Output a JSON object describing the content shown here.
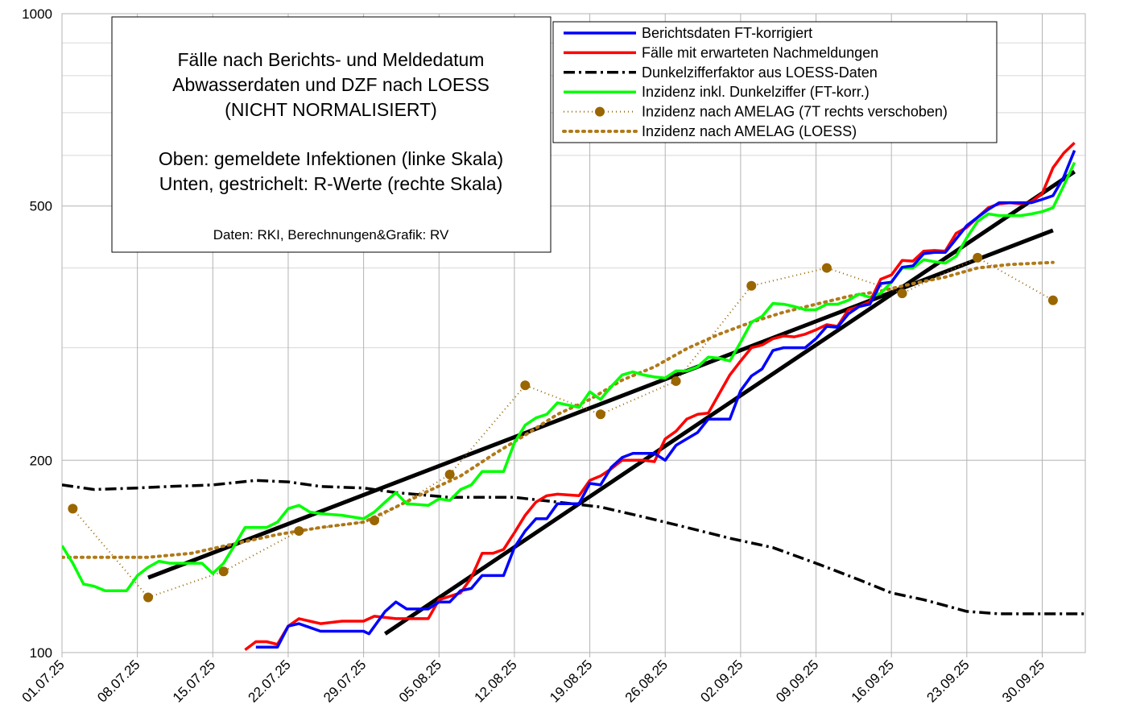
{
  "chart_data": {
    "type": "line",
    "log_y": true,
    "grid": true,
    "ylim": [
      100,
      1000
    ],
    "yticks": [
      100,
      200,
      500,
      1000
    ],
    "ygrid_minor": [
      300,
      400,
      600,
      700,
      800,
      900
    ],
    "xlim": [
      0,
      95
    ],
    "xticks": [
      {
        "value": 0,
        "label": "01.07.25"
      },
      {
        "value": 7,
        "label": "08.07.25"
      },
      {
        "value": 14,
        "label": "15.07.25"
      },
      {
        "value": 21,
        "label": "22.07.25"
      },
      {
        "value": 28,
        "label": "29.07.25"
      },
      {
        "value": 35,
        "label": "05.08.25"
      },
      {
        "value": 42,
        "label": "12.08.25"
      },
      {
        "value": 49,
        "label": "19.08.25"
      },
      {
        "value": 56,
        "label": "26.08.25"
      },
      {
        "value": 63,
        "label": "02.09.25"
      },
      {
        "value": 70,
        "label": "09.09.25"
      },
      {
        "value": 77,
        "label": "16.09.25"
      },
      {
        "value": 84,
        "label": "23.09.25"
      },
      {
        "value": 91,
        "label": "30.09.25"
      }
    ],
    "annotation": [
      "Fälle nach Berichts- und Meldedatum",
      "Abwasserdaten und DZF nach LOESS",
      "(NICHT NORMALISIERT)",
      "Oben: gemeldete Infektionen (linke Skala)",
      "Unten, gestrichelt: R-Werte (rechte Skala)",
      "Daten: RKI, Berechnungen&Grafik: RV"
    ],
    "series": [
      {
        "name": "Berichtsdaten FT-korrigiert",
        "color": "#0000ff",
        "style": "solid",
        "x": [
          18,
          20,
          21,
          22,
          24,
          28,
          28.5,
          30,
          31,
          32,
          34,
          35,
          36,
          37,
          38,
          39,
          41,
          42,
          43,
          44,
          45,
          46,
          48,
          49,
          50,
          51,
          52,
          53,
          55,
          56,
          57,
          58,
          59,
          60,
          62,
          63,
          64,
          65,
          66,
          67,
          69,
          70,
          71,
          72,
          73,
          74,
          75,
          76,
          77,
          78,
          79,
          80,
          81,
          82,
          83,
          84,
          85,
          86,
          87,
          89,
          90,
          91,
          92,
          93,
          94
        ],
        "values": [
          102,
          102,
          110,
          111,
          108,
          108,
          107,
          116,
          120,
          117,
          117,
          120,
          120,
          125,
          126,
          132,
          132,
          146,
          155,
          162,
          162,
          171,
          171,
          184,
          183,
          195,
          202,
          205,
          205,
          200,
          211,
          216,
          221,
          232,
          232,
          257,
          271,
          278,
          297,
          300,
          300,
          310,
          324,
          323,
          339,
          348,
          351,
          378,
          380,
          401,
          403,
          421,
          423,
          423,
          444,
          466,
          480,
          494,
          506,
          506,
          506,
          512,
          519,
          555,
          611
        ]
      },
      {
        "name": "Fälle mit erwarteten Nachmeldungen",
        "color": "#ff0000",
        "style": "solid",
        "x": [
          17,
          18,
          19,
          20,
          21,
          22,
          23,
          24,
          26,
          28,
          29,
          31,
          32,
          34,
          35,
          37,
          38,
          39,
          40,
          41,
          42,
          43,
          44,
          45,
          46,
          48,
          49,
          50,
          51,
          52,
          54,
          55,
          56,
          57,
          58,
          59,
          60,
          62,
          63,
          64,
          65,
          66,
          67,
          68,
          69,
          70,
          71,
          72,
          73,
          74,
          75,
          76,
          77,
          78,
          79,
          80,
          81,
          82,
          83,
          84,
          85,
          86,
          87,
          88,
          89,
          90,
          91,
          92,
          93,
          94
        ],
        "values": [
          101,
          104,
          104,
          103,
          110,
          113,
          112,
          111,
          112,
          112,
          114,
          113,
          113,
          113,
          121,
          124,
          131,
          143,
          143,
          145,
          154,
          164,
          172,
          176,
          177,
          176,
          186,
          189,
          194,
          200,
          200,
          199,
          216,
          222,
          232,
          236,
          237,
          272,
          286,
          300,
          303,
          310,
          313,
          312,
          315,
          320,
          326,
          324,
          344,
          348,
          354,
          384,
          390,
          411,
          410,
          425,
          426,
          425,
          453,
          463,
          480,
          497,
          504,
          506,
          504,
          508,
          523,
          574,
          605,
          628
        ]
      },
      {
        "name": "Dunkelzifferfaktor aus LOESS-Daten",
        "color": "#000000",
        "style": "dashdot",
        "x": [
          0,
          3,
          7,
          10,
          14,
          18,
          21,
          24,
          28,
          31,
          36,
          40,
          42,
          46,
          50,
          54,
          58,
          62,
          66,
          70,
          74,
          77,
          80,
          84,
          87,
          95
        ],
        "values": [
          183,
          180,
          181,
          182,
          183,
          186,
          185,
          182,
          181,
          178,
          175,
          175,
          175,
          172,
          169,
          163,
          157,
          151,
          146,
          138,
          130,
          124,
          121,
          116,
          115,
          115
        ]
      },
      {
        "name": "Inzidenz inkl. Dunkelziffer (FT-korr.)",
        "color": "#00ff00",
        "style": "solid",
        "x": [
          0,
          1,
          2,
          3,
          4,
          5,
          6,
          7,
          8,
          9,
          10,
          11,
          12,
          13,
          14,
          15,
          16,
          17,
          18,
          19,
          20,
          21,
          22,
          23,
          24,
          26,
          28,
          29,
          30,
          31,
          32,
          34,
          35,
          36,
          37,
          38,
          39,
          41,
          42,
          43,
          44,
          45,
          46,
          47,
          48,
          49,
          50,
          51,
          52,
          53,
          54,
          55,
          56,
          57,
          58,
          59,
          60,
          61,
          62,
          63,
          64,
          65,
          66,
          67,
          68,
          69,
          70,
          71,
          72,
          73,
          74,
          75,
          76,
          77,
          78,
          79,
          80,
          81,
          82,
          83,
          84,
          85,
          86,
          87,
          88,
          89,
          90,
          91,
          92,
          93,
          94
        ],
        "values": [
          147,
          138,
          128,
          127,
          125,
          125,
          125,
          132,
          136,
          139,
          138,
          138,
          138,
          138,
          133,
          138,
          147,
          157,
          157,
          157,
          160,
          168,
          170,
          166,
          165,
          164,
          162,
          166,
          172,
          178,
          171,
          170,
          174,
          173,
          180,
          183,
          192,
          192,
          213,
          227,
          233,
          236,
          246,
          244,
          242,
          256,
          249,
          261,
          272,
          275,
          272,
          270,
          269,
          276,
          276,
          280,
          290,
          289,
          286,
          306,
          329,
          336,
          352,
          351,
          348,
          344,
          344,
          351,
          351,
          356,
          364,
          360,
          365,
          380,
          400,
          400,
          412,
          409,
          407,
          417,
          446,
          473,
          486,
          483,
          483,
          483,
          486,
          490,
          497,
          538,
          585
        ]
      },
      {
        "name": "Inzidenz nach AMELAG (7T rechts verschoben)",
        "color": "#996600",
        "style": "dotted-marker",
        "x": [
          1,
          8,
          15,
          22,
          29,
          36,
          43,
          50,
          57,
          64,
          71,
          78,
          85,
          92
        ],
        "values": [
          168,
          122,
          134,
          155,
          161,
          190,
          262,
          236,
          266,
          375,
          400,
          365,
          415,
          356
        ]
      },
      {
        "name": "Inzidenz nach AMELAG (LOESS)",
        "color": "#b07a1a",
        "style": "dotted",
        "x": [
          0,
          4,
          8,
          12,
          16,
          20,
          24,
          28,
          31,
          34,
          37,
          40,
          43,
          46,
          49,
          52,
          55,
          58,
          61,
          64,
          67,
          70,
          73,
          76,
          79,
          82,
          85,
          88,
          92
        ],
        "values": [
          141,
          141,
          141,
          143,
          148,
          153,
          157,
          160,
          169,
          179,
          189,
          204,
          219,
          236,
          249,
          267,
          280,
          299,
          315,
          329,
          341,
          351,
          361,
          368,
          378,
          387,
          400,
          405,
          408
        ]
      }
    ],
    "trendlines": [
      {
        "color": "#000000",
        "x": [
          8,
          92
        ],
        "values": [
          131,
          458
        ]
      },
      {
        "color": "#000000",
        "x": [
          30,
          94
        ],
        "values": [
          107,
          566
        ]
      }
    ]
  }
}
